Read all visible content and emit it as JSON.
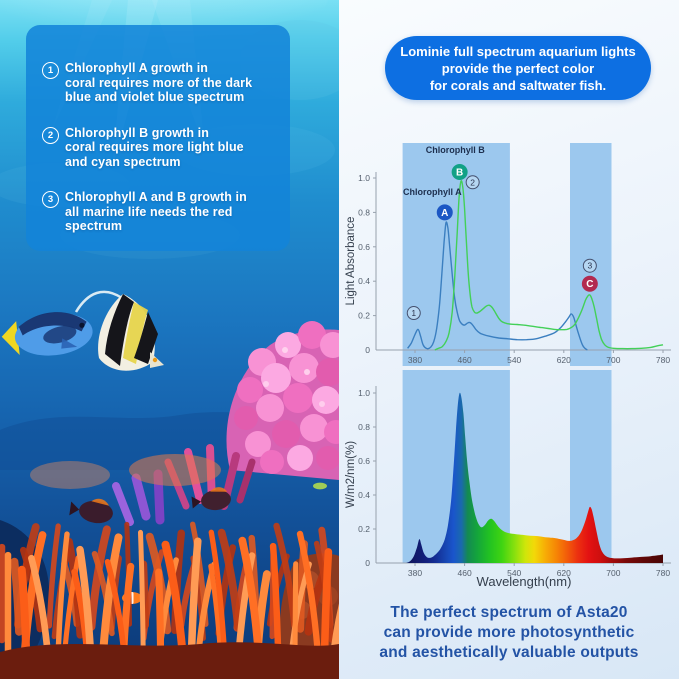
{
  "left_panel": {
    "items": [
      {
        "num": "1",
        "lines": [
          "Chlorophyll A growth in",
          "coral requires more of the dark",
          "blue and violet blue spectrum"
        ]
      },
      {
        "num": "2",
        "lines": [
          "Chlorophyll B growth in",
          "coral requires more light blue",
          "and cyan spectrum"
        ]
      },
      {
        "num": "3",
        "lines": [
          "Chlorophyll A and B growth in",
          "all marine life needs the red spectrum"
        ]
      }
    ]
  },
  "header": {
    "lines": [
      "Lominie full spectrum aquarium lights",
      "provide the perfect color",
      "for corals and saltwater fish."
    ]
  },
  "caption": {
    "lines": [
      "The perfect spectrum of Asta20",
      "can provide more photosynthetic",
      "and aesthetically valuable outputs"
    ]
  },
  "colors": {
    "header_bg": "#0d6fe2",
    "overlay_panel_bg": "rgba(19,131,216,0.86)",
    "band": "#9cc8ee",
    "axis": "#97a1ad",
    "tick_text": "#55606e",
    "axis_label_text": "#343f4d",
    "caption_text": "#2353a5",
    "chlorophyll_a": "#3b7fc0",
    "chlorophyll_b": "#43d058",
    "badge_a": "#1c57c4",
    "badge_b": "#11a186",
    "badge_c": "#b22a50"
  },
  "chart_data": [
    {
      "type": "line",
      "title": "",
      "xlabel": "",
      "ylabel": "Light Absorbance",
      "xlim": [
        360,
        790
      ],
      "ylim": [
        0,
        1.05
      ],
      "x_ticks": [
        380,
        460,
        540,
        620,
        700,
        780
      ],
      "y_ticks": [
        0,
        0.2,
        0.4,
        0.6,
        0.8,
        1.0
      ],
      "y_tick_labels": [
        "0",
        "0.2",
        "0.4",
        "0.6",
        "0.8",
        "1.0"
      ],
      "grid": false,
      "highlight_bands_nm": [
        [
          360,
          533
        ],
        [
          630,
          697
        ]
      ],
      "series": [
        {
          "name": "Chlorophyll A",
          "color": "#3b7fc0",
          "points": [
            [
              368,
              0.01
            ],
            [
              374,
              0.04
            ],
            [
              380,
              0.09
            ],
            [
              385,
              0.12
            ],
            [
              389,
              0.08
            ],
            [
              393,
              0.03
            ],
            [
              398,
              0.01
            ],
            [
              403,
              0.01
            ],
            [
              408,
              0.03
            ],
            [
              412,
              0.07
            ],
            [
              416,
              0.15
            ],
            [
              420,
              0.28
            ],
            [
              424,
              0.48
            ],
            [
              427,
              0.63
            ],
            [
              430,
              0.74
            ],
            [
              433,
              0.71
            ],
            [
              436,
              0.6
            ],
            [
              440,
              0.44
            ],
            [
              444,
              0.3
            ],
            [
              448,
              0.22
            ],
            [
              452,
              0.17
            ],
            [
              456,
              0.15
            ],
            [
              460,
              0.145
            ],
            [
              464,
              0.155
            ],
            [
              468,
              0.16
            ],
            [
              472,
              0.15
            ],
            [
              478,
              0.12
            ],
            [
              484,
              0.1
            ],
            [
              490,
              0.09
            ],
            [
              500,
              0.08
            ],
            [
              515,
              0.07
            ],
            [
              530,
              0.065
            ],
            [
              545,
              0.06
            ],
            [
              560,
              0.06
            ],
            [
              575,
              0.065
            ],
            [
              590,
              0.08
            ],
            [
              605,
              0.1
            ],
            [
              615,
              0.13
            ],
            [
              622,
              0.16
            ],
            [
              628,
              0.19
            ],
            [
              632,
              0.21
            ],
            [
              636,
              0.19
            ],
            [
              640,
              0.14
            ],
            [
              645,
              0.08
            ],
            [
              650,
              0.03
            ],
            [
              654,
              0.01
            ],
            [
              658,
              0.0
            ]
          ]
        },
        {
          "name": "Chlorophyll B",
          "color": "#43d058",
          "points": [
            [
              412,
              0.0
            ],
            [
              418,
              0.01
            ],
            [
              424,
              0.02
            ],
            [
              430,
              0.05
            ],
            [
              435,
              0.1
            ],
            [
              440,
              0.22
            ],
            [
              444,
              0.42
            ],
            [
              448,
              0.68
            ],
            [
              451,
              0.88
            ],
            [
              454,
              0.98
            ],
            [
              457,
              0.95
            ],
            [
              460,
              0.82
            ],
            [
              463,
              0.62
            ],
            [
              466,
              0.44
            ],
            [
              469,
              0.32
            ],
            [
              472,
              0.25
            ],
            [
              476,
              0.22
            ],
            [
              480,
              0.215
            ],
            [
              485,
              0.225
            ],
            [
              490,
              0.24
            ],
            [
              495,
              0.255
            ],
            [
              500,
              0.26
            ],
            [
              505,
              0.245
            ],
            [
              510,
              0.215
            ],
            [
              515,
              0.185
            ],
            [
              520,
              0.165
            ],
            [
              527,
              0.155
            ],
            [
              535,
              0.15
            ],
            [
              545,
              0.148
            ],
            [
              555,
              0.145
            ],
            [
              565,
              0.14
            ],
            [
              575,
              0.135
            ],
            [
              585,
              0.13
            ],
            [
              595,
              0.125
            ],
            [
              605,
              0.12
            ],
            [
              615,
              0.118
            ],
            [
              625,
              0.12
            ],
            [
              632,
              0.13
            ],
            [
              638,
              0.15
            ],
            [
              644,
              0.19
            ],
            [
              650,
              0.24
            ],
            [
              655,
              0.29
            ],
            [
              659,
              0.315
            ],
            [
              662,
              0.32
            ],
            [
              665,
              0.3
            ],
            [
              669,
              0.25
            ],
            [
              673,
              0.18
            ],
            [
              677,
              0.11
            ],
            [
              681,
              0.06
            ],
            [
              686,
              0.03
            ],
            [
              692,
              0.015
            ],
            [
              700,
              0.01
            ],
            [
              715,
              0.008
            ],
            [
              730,
              0.008
            ],
            [
              745,
              0.01
            ],
            [
              760,
              0.015
            ],
            [
              772,
              0.025
            ],
            [
              780,
              0.03
            ]
          ]
        }
      ],
      "annotations": [
        {
          "kind": "series-label",
          "text": "Chlorophyll A",
          "nm": 408,
          "value": 0.9
        },
        {
          "kind": "badge",
          "text": "A",
          "nm": 428,
          "value": 0.8,
          "color": "#1c57c4"
        },
        {
          "kind": "series-label",
          "text": "Chlorophyll B",
          "nm": 445,
          "value": 1.145
        },
        {
          "kind": "badge",
          "text": "B",
          "nm": 452,
          "value": 1.035,
          "color": "#11a186"
        },
        {
          "kind": "number",
          "text": "2",
          "nm": 473,
          "value": 0.975
        },
        {
          "kind": "number",
          "text": "1",
          "nm": 378,
          "value": 0.215
        },
        {
          "kind": "number",
          "text": "3",
          "nm": 662,
          "value": 0.49
        },
        {
          "kind": "badge",
          "text": "C",
          "nm": 662,
          "value": 0.385,
          "color": "#b22a50"
        }
      ]
    },
    {
      "type": "area",
      "title": "",
      "xlabel": "Wavelength(nm)",
      "ylabel": "W/m2/nm(%)",
      "xlim": [
        360,
        790
      ],
      "ylim": [
        0,
        1.05
      ],
      "x_ticks": [
        380,
        460,
        540,
        620,
        700,
        780
      ],
      "y_ticks": [
        0,
        0.2,
        0.4,
        0.6,
        0.8,
        1.0
      ],
      "y_tick_labels": [
        "0",
        "0.2",
        "0.4",
        "0.6",
        "0.8",
        "1.0"
      ],
      "grid": false,
      "highlight_bands_nm": [
        [
          360,
          533
        ],
        [
          630,
          697
        ]
      ],
      "points": [
        [
          366,
          0.0
        ],
        [
          372,
          0.01
        ],
        [
          378,
          0.04
        ],
        [
          383,
          0.09
        ],
        [
          387,
          0.14
        ],
        [
          390,
          0.11
        ],
        [
          394,
          0.06
        ],
        [
          399,
          0.035
        ],
        [
          404,
          0.03
        ],
        [
          410,
          0.04
        ],
        [
          416,
          0.06
        ],
        [
          422,
          0.09
        ],
        [
          428,
          0.14
        ],
        [
          433,
          0.22
        ],
        [
          438,
          0.36
        ],
        [
          442,
          0.55
        ],
        [
          446,
          0.78
        ],
        [
          449,
          0.93
        ],
        [
          452,
          1.0
        ],
        [
          455,
          0.97
        ],
        [
          458,
          0.88
        ],
        [
          461,
          0.74
        ],
        [
          464,
          0.6
        ],
        [
          468,
          0.47
        ],
        [
          472,
          0.37
        ],
        [
          476,
          0.3
        ],
        [
          480,
          0.25
        ],
        [
          484,
          0.22
        ],
        [
          488,
          0.21
        ],
        [
          493,
          0.225
        ],
        [
          498,
          0.25
        ],
        [
          503,
          0.26
        ],
        [
          508,
          0.245
        ],
        [
          513,
          0.22
        ],
        [
          518,
          0.2
        ],
        [
          524,
          0.185
        ],
        [
          532,
          0.175
        ],
        [
          542,
          0.17
        ],
        [
          554,
          0.165
        ],
        [
          566,
          0.16
        ],
        [
          578,
          0.158
        ],
        [
          590,
          0.152
        ],
        [
          602,
          0.148
        ],
        [
          612,
          0.142
        ],
        [
          620,
          0.136
        ],
        [
          627,
          0.13
        ],
        [
          633,
          0.132
        ],
        [
          639,
          0.142
        ],
        [
          645,
          0.165
        ],
        [
          650,
          0.2
        ],
        [
          655,
          0.25
        ],
        [
          659,
          0.3
        ],
        [
          662,
          0.33
        ],
        [
          665,
          0.315
        ],
        [
          668,
          0.27
        ],
        [
          672,
          0.2
        ],
        [
          676,
          0.13
        ],
        [
          680,
          0.08
        ],
        [
          685,
          0.05
        ],
        [
          691,
          0.035
        ],
        [
          700,
          0.028
        ],
        [
          715,
          0.028
        ],
        [
          730,
          0.032
        ],
        [
          745,
          0.036
        ],
        [
          760,
          0.04
        ],
        [
          772,
          0.045
        ],
        [
          780,
          0.05
        ]
      ],
      "gradient_stops": [
        {
          "nm": 366,
          "color": "#0d1257"
        },
        {
          "nm": 385,
          "color": "#101a6e"
        },
        {
          "nm": 400,
          "color": "#12207f"
        },
        {
          "nm": 415,
          "color": "#143097"
        },
        {
          "nm": 430,
          "color": "#1747b4"
        },
        {
          "nm": 442,
          "color": "#1a55cc"
        },
        {
          "nm": 455,
          "color": "#1a6aac"
        },
        {
          "nm": 465,
          "color": "#148a52"
        },
        {
          "nm": 480,
          "color": "#14a43c"
        },
        {
          "nm": 500,
          "color": "#22c222"
        },
        {
          "nm": 520,
          "color": "#3fd412"
        },
        {
          "nm": 540,
          "color": "#85e00e"
        },
        {
          "nm": 558,
          "color": "#cfe60a"
        },
        {
          "nm": 572,
          "color": "#f2d908"
        },
        {
          "nm": 590,
          "color": "#f7ad06"
        },
        {
          "nm": 608,
          "color": "#f68505"
        },
        {
          "nm": 625,
          "color": "#f25c0a"
        },
        {
          "nm": 642,
          "color": "#ec3110"
        },
        {
          "nm": 660,
          "color": "#e31212"
        },
        {
          "nm": 678,
          "color": "#cf0f0f"
        },
        {
          "nm": 695,
          "color": "#a80c0c"
        },
        {
          "nm": 720,
          "color": "#7a0909"
        },
        {
          "nm": 750,
          "color": "#5e0707"
        },
        {
          "nm": 780,
          "color": "#4a0606"
        }
      ]
    }
  ]
}
